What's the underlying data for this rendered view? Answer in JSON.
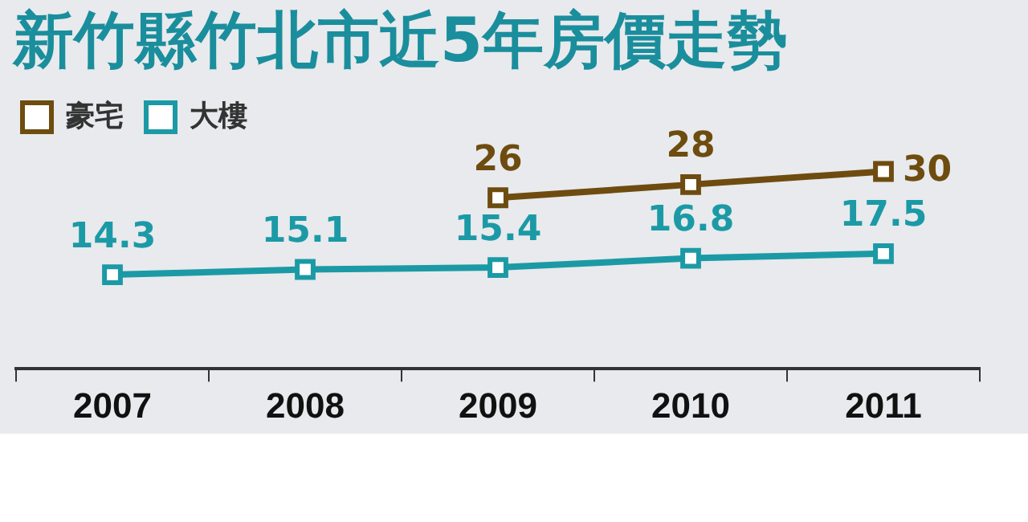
{
  "chart_data": {
    "type": "line",
    "title": "新竹縣竹北市近5年房價走勢",
    "categories": [
      "2007",
      "2008",
      "2009",
      "2010",
      "2011"
    ],
    "series": [
      {
        "name": "豪宅",
        "color": "#6e4c10",
        "values": [
          null,
          null,
          26,
          28,
          30
        ]
      },
      {
        "name": "大樓",
        "color": "#1b9aa6",
        "values": [
          14.3,
          15.1,
          15.4,
          16.8,
          17.5
        ]
      }
    ],
    "data_labels": true,
    "legend": "top left",
    "marker": "square",
    "line_style": "solid",
    "grid": false
  }
}
